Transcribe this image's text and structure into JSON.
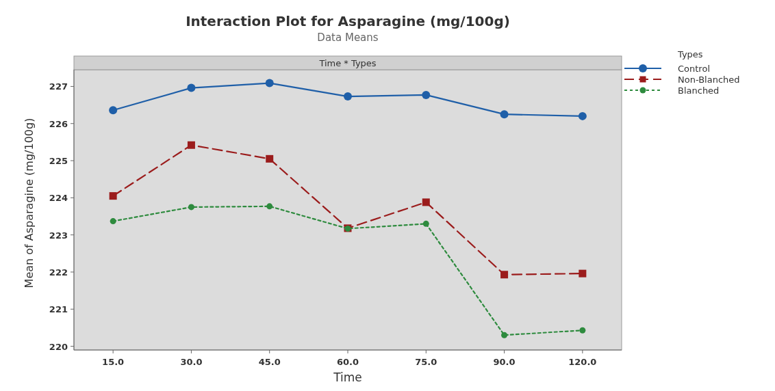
{
  "chart_data": {
    "type": "line",
    "title": "Interaction Plot for Asparagine (mg/100g)",
    "subtitle": "Data Means",
    "annotations": [
      "Time * Types"
    ],
    "xlabel": "Time",
    "ylabel": "Mean of Asparagine (mg/100g)",
    "legend_title": "Types",
    "legend": "top right",
    "categories": [
      "15.0",
      "30.0",
      "45.0",
      "60.0",
      "75.0",
      "90.0",
      "120.0"
    ],
    "ylim": [
      219.9,
      227.45
    ],
    "yticks": [
      220,
      221,
      222,
      223,
      224,
      225,
      226,
      227
    ],
    "grid": false,
    "series": [
      {
        "name": "Control",
        "color": "#1f5fa8",
        "marker": "circle",
        "line_style": "solid",
        "values": [
          226.36,
          226.96,
          227.09,
          226.73,
          226.77,
          226.25,
          226.2
        ]
      },
      {
        "name": "Non-Blanched",
        "color": "#9b1c1c",
        "marker": "square",
        "line_style": "dashed",
        "values": [
          224.05,
          225.42,
          225.05,
          223.18,
          223.88,
          221.93,
          221.96
        ]
      },
      {
        "name": "Blanched",
        "color": "#2e8b3e",
        "marker": "circle",
        "line_style": "dotted",
        "values": [
          223.37,
          223.75,
          223.77,
          223.17,
          223.3,
          220.3,
          220.43
        ]
      }
    ]
  }
}
